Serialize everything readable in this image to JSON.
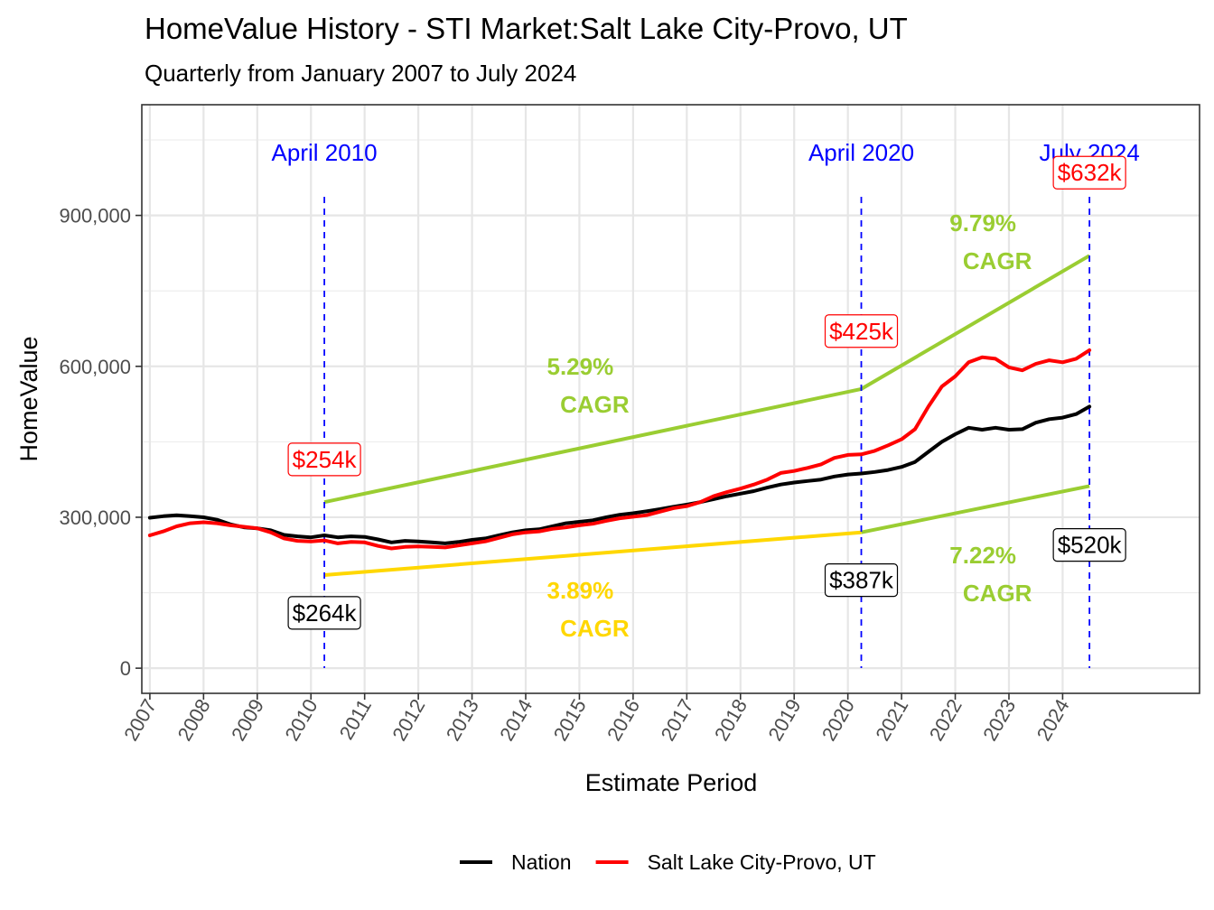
{
  "chart_data": {
    "type": "line",
    "title": "HomeValue History - STI Market:Salt Lake City-Provo, UT",
    "subtitle": "Quarterly from January 2007 to July 2024",
    "xlabel": "Estimate Period",
    "ylabel": "HomeValue",
    "xlim": [
      2006.85,
      2026.55
    ],
    "ylim": [
      -50000,
      1120000
    ],
    "x_ticks": [
      2007,
      2008,
      2009,
      2010,
      2011,
      2012,
      2013,
      2014,
      2015,
      2016,
      2017,
      2018,
      2019,
      2020,
      2021,
      2022,
      2023,
      2024
    ],
    "x_tick_labels": [
      "2007",
      "2008",
      "2009",
      "2010",
      "2011",
      "2012",
      "2013",
      "2014",
      "2015",
      "2016",
      "2017",
      "2018",
      "2019",
      "2020",
      "2021",
      "2022",
      "2023",
      "2024"
    ],
    "y_ticks": [
      0,
      300000,
      600000,
      900000
    ],
    "y_tick_labels": [
      "0",
      "300,000",
      "600,000",
      "900,000"
    ],
    "grid": true,
    "legend_position": "bottom",
    "series": [
      {
        "name": "Nation",
        "color": "#000000",
        "x": [
          2007.0,
          2007.25,
          2007.5,
          2007.75,
          2008.0,
          2008.25,
          2008.5,
          2008.75,
          2009.0,
          2009.25,
          2009.5,
          2009.75,
          2010.0,
          2010.25,
          2010.5,
          2010.75,
          2011.0,
          2011.25,
          2011.5,
          2011.75,
          2012.0,
          2012.25,
          2012.5,
          2012.75,
          2013.0,
          2013.25,
          2013.5,
          2013.75,
          2014.0,
          2014.25,
          2014.5,
          2014.75,
          2015.0,
          2015.25,
          2015.5,
          2015.75,
          2016.0,
          2016.25,
          2016.5,
          2016.75,
          2017.0,
          2017.25,
          2017.5,
          2017.75,
          2018.0,
          2018.25,
          2018.5,
          2018.75,
          2019.0,
          2019.25,
          2019.5,
          2019.75,
          2020.0,
          2020.25,
          2020.5,
          2020.75,
          2021.0,
          2021.25,
          2021.5,
          2021.75,
          2022.0,
          2022.25,
          2022.5,
          2022.75,
          2023.0,
          2023.25,
          2023.5,
          2023.75,
          2024.0,
          2024.25,
          2024.5
        ],
        "values": [
          299000,
          302000,
          304000,
          302000,
          300000,
          295000,
          286000,
          280000,
          278000,
          274000,
          265000,
          262000,
          260000,
          264000,
          260000,
          262000,
          261000,
          256000,
          250000,
          253000,
          252000,
          250000,
          248000,
          251000,
          255000,
          258000,
          264000,
          270000,
          274000,
          276000,
          282000,
          288000,
          291000,
          294000,
          300000,
          305000,
          308000,
          312000,
          316000,
          321000,
          325000,
          330000,
          336000,
          342000,
          347000,
          352000,
          359000,
          365000,
          369000,
          372000,
          375000,
          381000,
          385000,
          387000,
          390000,
          394000,
          400000,
          410000,
          430000,
          450000,
          465000,
          478000,
          474000,
          478000,
          474000,
          475000,
          488000,
          495000,
          498000,
          505000,
          520000
        ]
      },
      {
        "name": "Salt Lake City-Provo, UT",
        "color": "#ff0000",
        "x": [
          2007.0,
          2007.25,
          2007.5,
          2007.75,
          2008.0,
          2008.25,
          2008.5,
          2008.75,
          2009.0,
          2009.25,
          2009.5,
          2009.75,
          2010.0,
          2010.25,
          2010.5,
          2010.75,
          2011.0,
          2011.25,
          2011.5,
          2011.75,
          2012.0,
          2012.25,
          2012.5,
          2012.75,
          2013.0,
          2013.25,
          2013.5,
          2013.75,
          2014.0,
          2014.25,
          2014.5,
          2014.75,
          2015.0,
          2015.25,
          2015.5,
          2015.75,
          2016.0,
          2016.25,
          2016.5,
          2016.75,
          2017.0,
          2017.25,
          2017.5,
          2017.75,
          2018.0,
          2018.25,
          2018.5,
          2018.75,
          2019.0,
          2019.25,
          2019.5,
          2019.75,
          2020.0,
          2020.25,
          2020.5,
          2020.75,
          2021.0,
          2021.25,
          2021.5,
          2021.75,
          2022.0,
          2022.25,
          2022.5,
          2022.75,
          2023.0,
          2023.25,
          2023.5,
          2023.75,
          2024.0,
          2024.25,
          2024.5
        ],
        "values": [
          264000,
          272000,
          282000,
          288000,
          290000,
          288000,
          284000,
          281000,
          278000,
          270000,
          258000,
          253000,
          252000,
          254000,
          248000,
          251000,
          250000,
          243000,
          238000,
          241000,
          242000,
          241000,
          240000,
          244000,
          248000,
          252000,
          259000,
          266000,
          270000,
          272000,
          277000,
          280000,
          284000,
          287000,
          293000,
          298000,
          301000,
          304000,
          311000,
          318000,
          322000,
          330000,
          342000,
          350000,
          357000,
          365000,
          375000,
          388000,
          392000,
          398000,
          405000,
          418000,
          424000,
          425000,
          432000,
          443000,
          455000,
          475000,
          520000,
          560000,
          580000,
          608000,
          618000,
          615000,
          598000,
          592000,
          605000,
          612000,
          608000,
          615000,
          632000
        ]
      }
    ],
    "cagr_lines": [
      {
        "name": "Salt Lake City-Provo, UT CAGR",
        "color": "#9acd32",
        "x": [
          2010.25,
          2020.25,
          2024.5
        ],
        "values": [
          330000,
          555000,
          820000
        ]
      },
      {
        "name": "Nation CAGR",
        "color": "#9acd32",
        "x": [
          2020.25,
          2024.5
        ],
        "values": [
          270000,
          362000
        ]
      },
      {
        "name": "Nation CAGR",
        "color": "#ffd700",
        "x": [
          2010.25,
          2020.25
        ],
        "values": [
          185000,
          270000
        ]
      }
    ],
    "vlines": [
      {
        "x": 2010.25,
        "label": "April 2010",
        "color": "#0000ff"
      },
      {
        "x": 2020.25,
        "label": "April 2020",
        "color": "#0000ff"
      },
      {
        "x": 2024.5,
        "label": "July 2024",
        "color": "#0000ff"
      }
    ],
    "callouts": [
      {
        "text": "$254k",
        "color": "#ff0000",
        "x": 2010.25,
        "y": 415000
      },
      {
        "text": "$264k",
        "color": "#000000",
        "x": 2010.25,
        "y": 110000
      },
      {
        "text": "$425k",
        "color": "#ff0000",
        "x": 2020.25,
        "y": 670000
      },
      {
        "text": "$387k",
        "color": "#000000",
        "x": 2020.25,
        "y": 175000
      },
      {
        "text": "$632k",
        "color": "#ff0000",
        "x": 2024.5,
        "y": 985000
      },
      {
        "text": "$520k",
        "color": "#000000",
        "x": 2024.5,
        "y": 245000
      }
    ],
    "cagr_labels": [
      {
        "pct": "5.29%",
        "cagr": "CAGR",
        "color": "#9acd32",
        "x": 2015.15,
        "y": 600000
      },
      {
        "pct": "3.89%",
        "cagr": "CAGR",
        "color": "#ffd700",
        "x": 2015.15,
        "y": 155000
      },
      {
        "pct": "9.79%",
        "cagr": "CAGR",
        "color": "#9acd32",
        "x": 2022.65,
        "y": 885000
      },
      {
        "pct": "7.22%",
        "cagr": "CAGR",
        "color": "#9acd32",
        "x": 2022.65,
        "y": 225000
      }
    ]
  }
}
